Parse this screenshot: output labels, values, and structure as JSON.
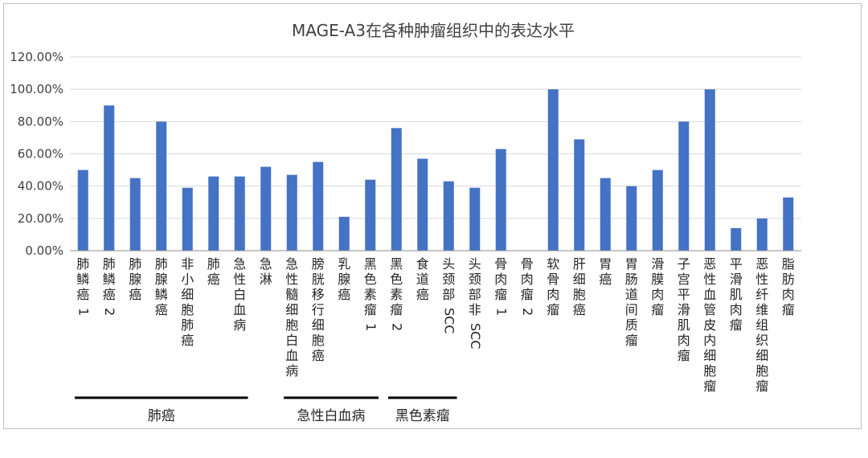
{
  "chart_data": {
    "type": "bar",
    "title": "MAGE-A3在各种肿瘤组织中的表达水平",
    "xlabel": "",
    "ylabel": "",
    "ylim": [
      0,
      120
    ],
    "yticks": [
      "0.00%",
      "20.00%",
      "40.00%",
      "60.00%",
      "80.00%",
      "100.00%",
      "120.00%"
    ],
    "ytick_values": [
      0,
      20,
      40,
      60,
      80,
      100,
      120
    ],
    "grid": true,
    "bar_color": "#4472C4",
    "categories": [
      "肺鳞癌1",
      "肺鳞癌2",
      "肺腺癌",
      "肺腺鳞癌",
      "非小细胞肺癌",
      "肺癌",
      "急性白血病",
      "急淋",
      "急性髓细胞白血病",
      "膀胱移行细胞癌",
      "乳腺癌",
      "黑色素瘤1",
      "黑色素瘤2",
      "食道癌",
      "头颈部SCC",
      "头颈部非SCC",
      "骨肉瘤1",
      "骨肉瘤2",
      "软骨肉瘤",
      "肝细胞癌",
      "胃癌",
      "胃肠道间质瘤",
      "滑膜肉瘤",
      "子宫平滑肌肉瘤",
      "恶性血管皮内细胞瘤",
      "平滑肌肉瘤",
      "恶性纤维组织细胞瘤",
      "脂肪肉瘤"
    ],
    "values": [
      50,
      90,
      45,
      80,
      39,
      46,
      46,
      52,
      47,
      55,
      21,
      44,
      76,
      57,
      43,
      39,
      63,
      0,
      100,
      69,
      45,
      40,
      50,
      80,
      100,
      14,
      20,
      33
    ],
    "groups": [
      {
        "label": "肺癌",
        "from": 0,
        "to": 6
      },
      {
        "label": "急性白血病",
        "from": 8,
        "to": 11
      },
      {
        "label": "黑色素瘤",
        "from": 12,
        "to": 14
      }
    ]
  }
}
